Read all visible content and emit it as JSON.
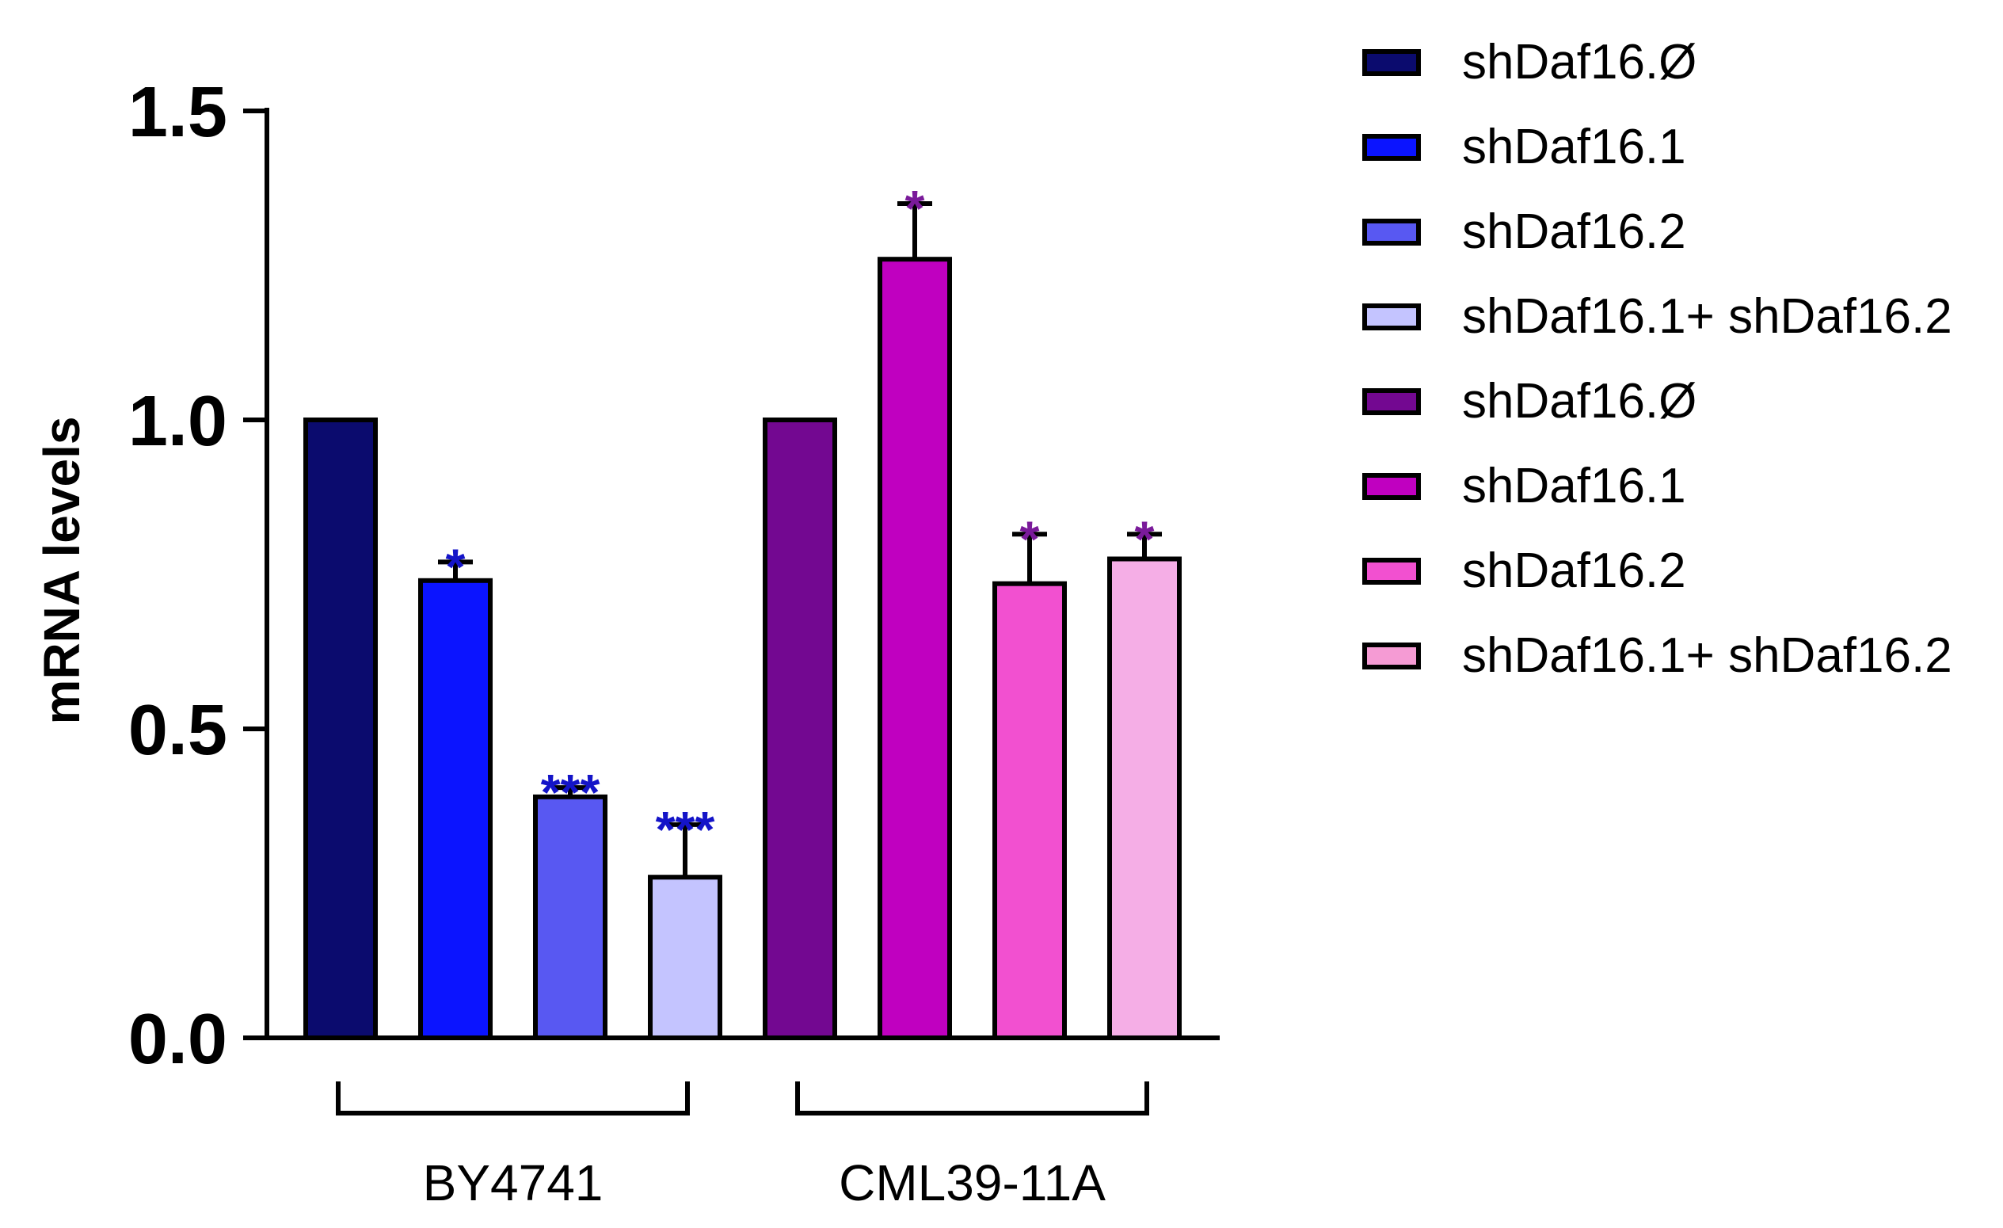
{
  "chart_data": {
    "type": "bar",
    "title": "",
    "xlabel": "",
    "ylabel": "mRNA levels",
    "ylim": [
      0,
      1.5
    ],
    "yticks": [
      "0.0",
      "0.5",
      "1.0",
      "1.5"
    ],
    "groups": [
      "BY4741",
      "CML39-11A"
    ],
    "series": [
      {
        "name": "shDaf16.Ø",
        "group": "BY4741",
        "value": 1.0,
        "error": 0.0,
        "sig": "",
        "color": "#0b0b6e",
        "sig_color": "#1414c8"
      },
      {
        "name": "shDaf16.1",
        "group": "BY4741",
        "value": 0.74,
        "error": 0.03,
        "sig": "*",
        "color": "#0b14ff",
        "sig_color": "#1414c8"
      },
      {
        "name": "shDaf16.2",
        "group": "BY4741",
        "value": 0.39,
        "error": 0.015,
        "sig": "***",
        "color": "#5858f2",
        "sig_color": "#1414c8"
      },
      {
        "name": "shDaf16.1+ shDaf16.2",
        "group": "BY4741",
        "value": 0.26,
        "error": 0.085,
        "sig": "***",
        "color": "#c4c4ff",
        "sig_color": "#1414c8"
      },
      {
        "name": "shDaf16.Ø",
        "group": "CML39-11A",
        "value": 1.0,
        "error": 0.0,
        "sig": "",
        "color": "#730891",
        "sig_color": "#7a1a9a"
      },
      {
        "name": "shDaf16.1",
        "group": "CML39-11A",
        "value": 1.26,
        "error": 0.09,
        "sig": "*",
        "color": "#c000c0",
        "sig_color": "#7a1a9a"
      },
      {
        "name": "shDaf16.2",
        "group": "CML39-11A",
        "value": 0.735,
        "error": 0.08,
        "sig": "*",
        "color": "#f250d0",
        "sig_color": "#7a1a9a"
      },
      {
        "name": "shDaf16.1+ shDaf16.2",
        "group": "CML39-11A",
        "value": 0.775,
        "error": 0.04,
        "sig": "*",
        "color": "#f5aee6",
        "sig_color": "#7a1a9a"
      }
    ],
    "legend": [
      {
        "label": "shDaf16.Ø",
        "color": "#0b0b6e"
      },
      {
        "label": "shDaf16.1",
        "color": "#0b14ff"
      },
      {
        "label": "shDaf16.2",
        "color": "#5858f2"
      },
      {
        "label": "shDaf16.1+ shDaf16.2",
        "color": "#c4c4ff"
      },
      {
        "label": "shDaf16.Ø",
        "color": "#730891"
      },
      {
        "label": "shDaf16.1",
        "color": "#c000c0"
      },
      {
        "label": "shDaf16.2",
        "color": "#f250d0"
      },
      {
        "label": "shDaf16.1+ shDaf16.2",
        "color": "#f59bd4"
      }
    ]
  }
}
